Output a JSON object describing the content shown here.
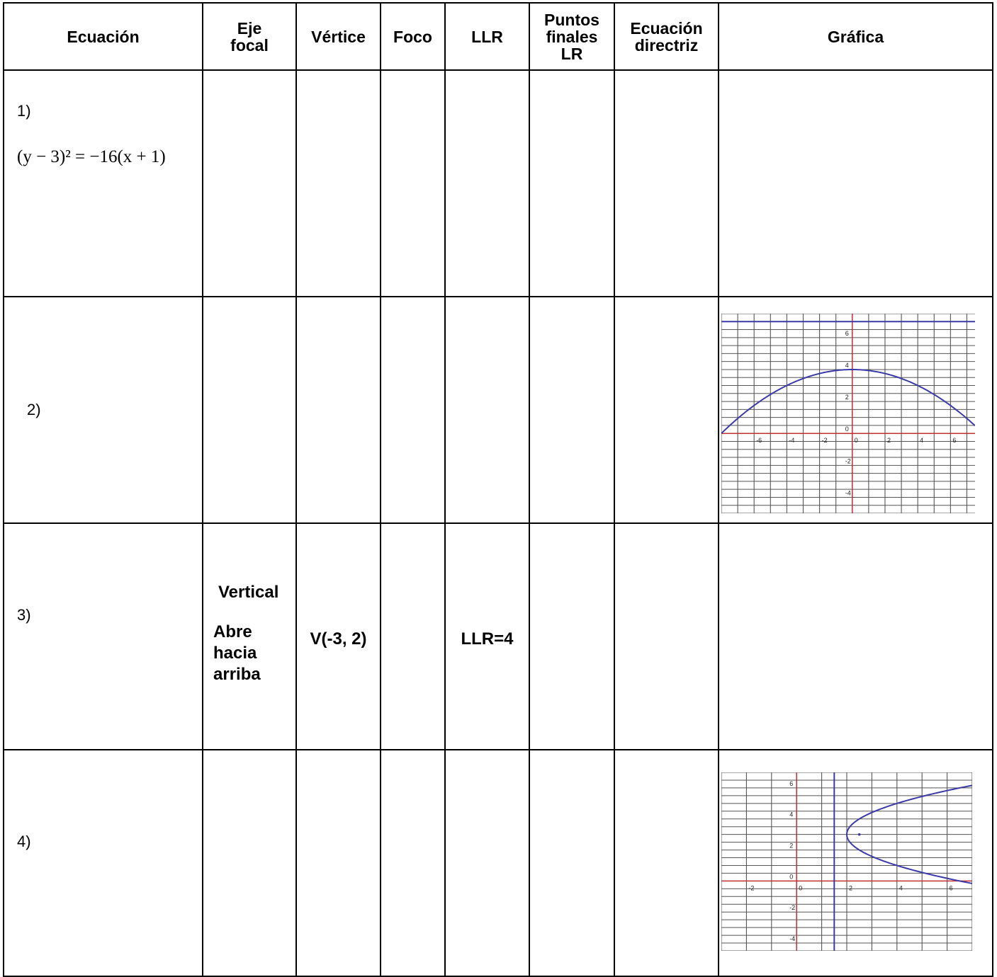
{
  "headers": [
    "Ecuación",
    "Eje\nfocal",
    "Vértice",
    "Foco",
    "LLR",
    "Puntos\nfinales\nLR",
    "Ecuación\ndirectriz",
    "Gráfica"
  ],
  "rows": [
    {
      "label": "1)",
      "equation": "(y − 3)² = −16(x + 1)"
    },
    {
      "label": "2)"
    },
    {
      "label": "3)",
      "eje_focal_1": "Vertical",
      "eje_focal_2": "Abre\nhacia\narriba",
      "vertice": "V(-3, 2)",
      "llr": "LLR=4"
    },
    {
      "label": "4)"
    }
  ],
  "chart_data": [
    {
      "type": "line",
      "xlim": [
        -8,
        7.5
      ],
      "ylim": [
        -5,
        7.5
      ],
      "x_ticks": [
        -6,
        -4,
        -2,
        0,
        2,
        4,
        6
      ],
      "y_ticks": [
        -4,
        -2,
        0,
        2,
        4,
        6
      ],
      "grid": true,
      "series": [
        {
          "kind": "parabola",
          "equation": "y = 4 - x^2/16"
        },
        {
          "kind": "directrix",
          "equation": "y = 7"
        }
      ],
      "colors": {
        "curve": "#3b3ba8",
        "axis": "#c03030",
        "grid": "#555555"
      }
    },
    {
      "type": "line",
      "xlim": [
        -3,
        7
      ],
      "ylim": [
        -4.5,
        7
      ],
      "x_ticks": [
        -2,
        0,
        2,
        4,
        6
      ],
      "y_ticks": [
        -4,
        -2,
        0,
        2,
        4,
        6
      ],
      "grid": true,
      "series": [
        {
          "kind": "parabola",
          "equation": "(y-3)^2 = 2(x-2)"
        },
        {
          "kind": "directrix",
          "equation": "x = 1.5"
        },
        {
          "kind": "focus",
          "point": [
            2.5,
            3
          ]
        }
      ],
      "colors": {
        "curve": "#3b3ba8",
        "axis": "#c03030",
        "grid": "#555555"
      }
    }
  ]
}
